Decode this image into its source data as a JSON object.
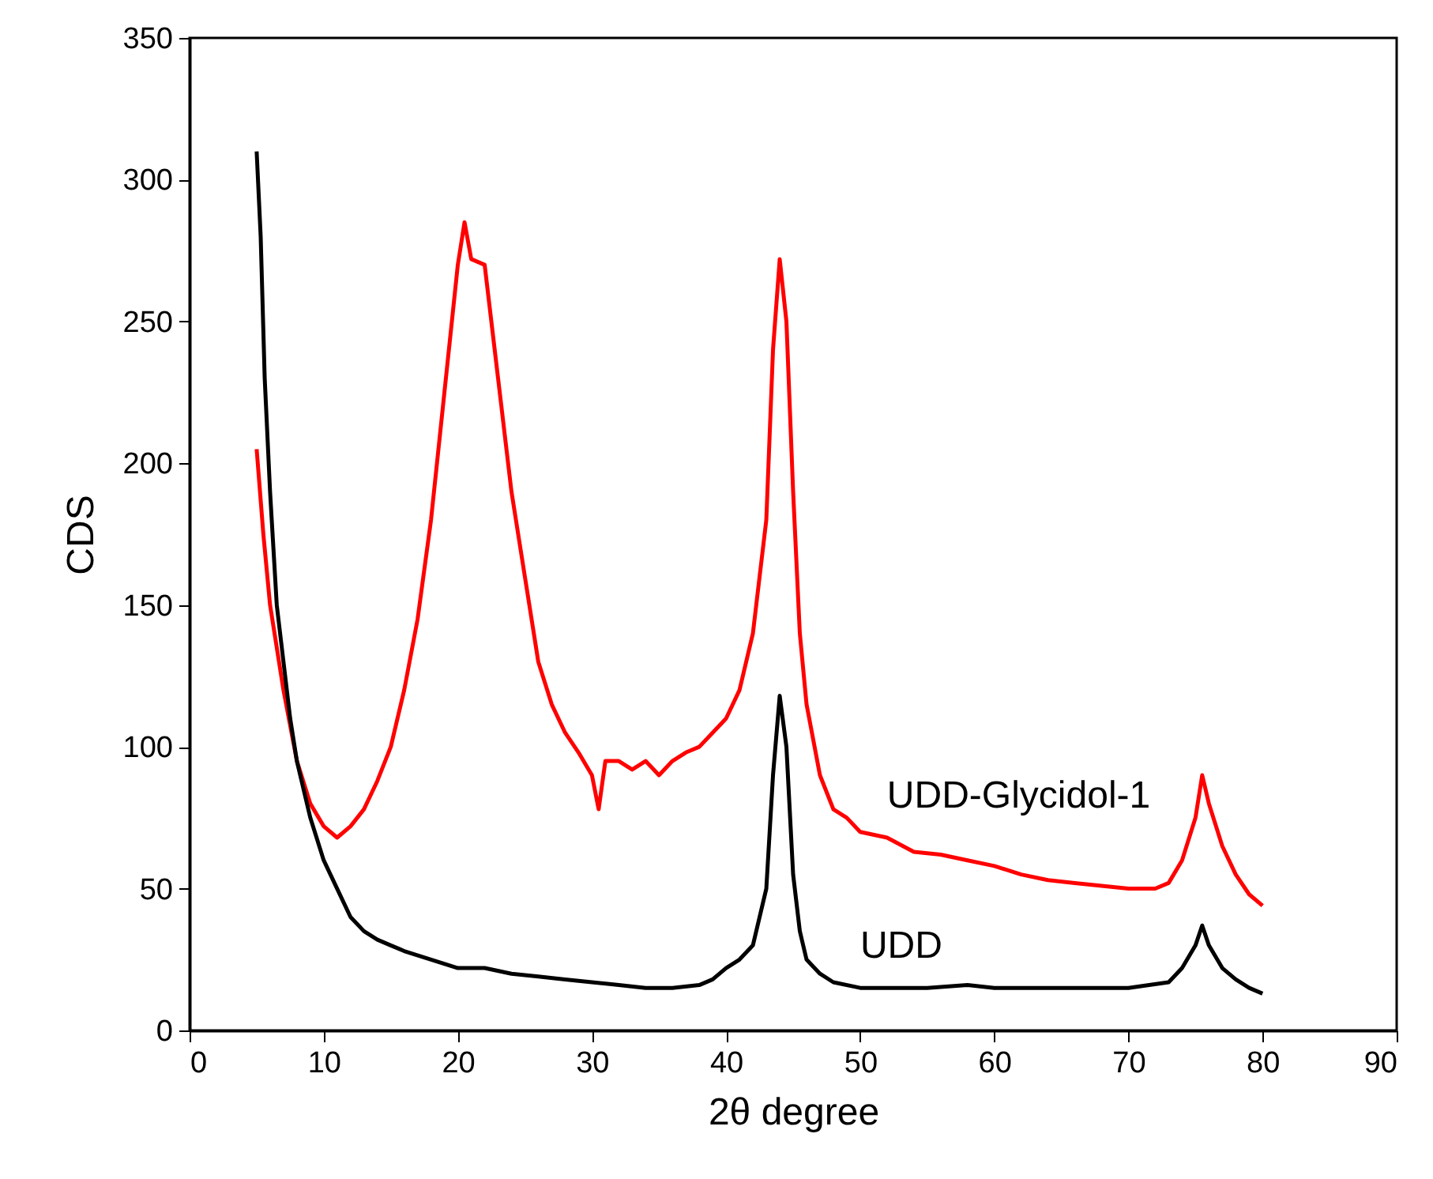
{
  "chart_data": {
    "type": "line",
    "xlabel": "2θ degree",
    "ylabel": "CDS",
    "xlim": [
      0,
      90
    ],
    "xticks": [
      0,
      10,
      20,
      30,
      40,
      50,
      60,
      70,
      80,
      90
    ],
    "ylim": [
      0,
      350
    ],
    "yticks": [
      0,
      50,
      100,
      150,
      200,
      250,
      300,
      350
    ],
    "series": [
      {
        "name": "UDD-Glycidol-1",
        "color": "#ff0000",
        "x": [
          5,
          5.5,
          6,
          7,
          8,
          9,
          10,
          11,
          12,
          13,
          14,
          15,
          16,
          17,
          18,
          19,
          20,
          20.5,
          21,
          22,
          23,
          24,
          25,
          26,
          27,
          28,
          29,
          30,
          30.5,
          31,
          32,
          33,
          34,
          35,
          36,
          37,
          38,
          39,
          40,
          41,
          42,
          43,
          43.5,
          44,
          44.5,
          45,
          45.5,
          46,
          47,
          48,
          49,
          50,
          52,
          54,
          56,
          58,
          60,
          62,
          64,
          66,
          68,
          70,
          72,
          73,
          74,
          75,
          75.5,
          76,
          77,
          78,
          79,
          80
        ],
        "values": [
          205,
          175,
          150,
          120,
          95,
          80,
          72,
          68,
          72,
          78,
          88,
          100,
          120,
          145,
          180,
          225,
          270,
          285,
          272,
          270,
          230,
          190,
          160,
          130,
          115,
          105,
          98,
          90,
          78,
          95,
          95,
          92,
          95,
          90,
          95,
          98,
          100,
          105,
          110,
          120,
          140,
          180,
          240,
          272,
          250,
          190,
          140,
          115,
          90,
          78,
          75,
          70,
          68,
          63,
          62,
          60,
          58,
          55,
          53,
          52,
          51,
          50,
          50,
          52,
          60,
          75,
          90,
          80,
          65,
          55,
          48,
          44
        ]
      },
      {
        "name": "UDD",
        "color": "#000000",
        "x": [
          5,
          5.3,
          5.6,
          6,
          6.5,
          7,
          7.5,
          8,
          9,
          10,
          11,
          12,
          13,
          14,
          15,
          16,
          18,
          20,
          22,
          24,
          26,
          28,
          30,
          32,
          34,
          36,
          38,
          39,
          40,
          41,
          42,
          43,
          43.5,
          44,
          44.5,
          45,
          45.5,
          46,
          47,
          48,
          50,
          52,
          55,
          58,
          60,
          65,
          70,
          73,
          74,
          75,
          75.5,
          76,
          77,
          78,
          79,
          80
        ],
        "values": [
          310,
          280,
          230,
          190,
          150,
          130,
          110,
          95,
          75,
          60,
          50,
          40,
          35,
          32,
          30,
          28,
          25,
          22,
          22,
          20,
          19,
          18,
          17,
          16,
          15,
          15,
          16,
          18,
          22,
          25,
          30,
          50,
          90,
          118,
          100,
          55,
          35,
          25,
          20,
          17,
          15,
          15,
          15,
          16,
          15,
          15,
          15,
          17,
          22,
          30,
          37,
          30,
          22,
          18,
          15,
          13
        ]
      }
    ]
  }
}
